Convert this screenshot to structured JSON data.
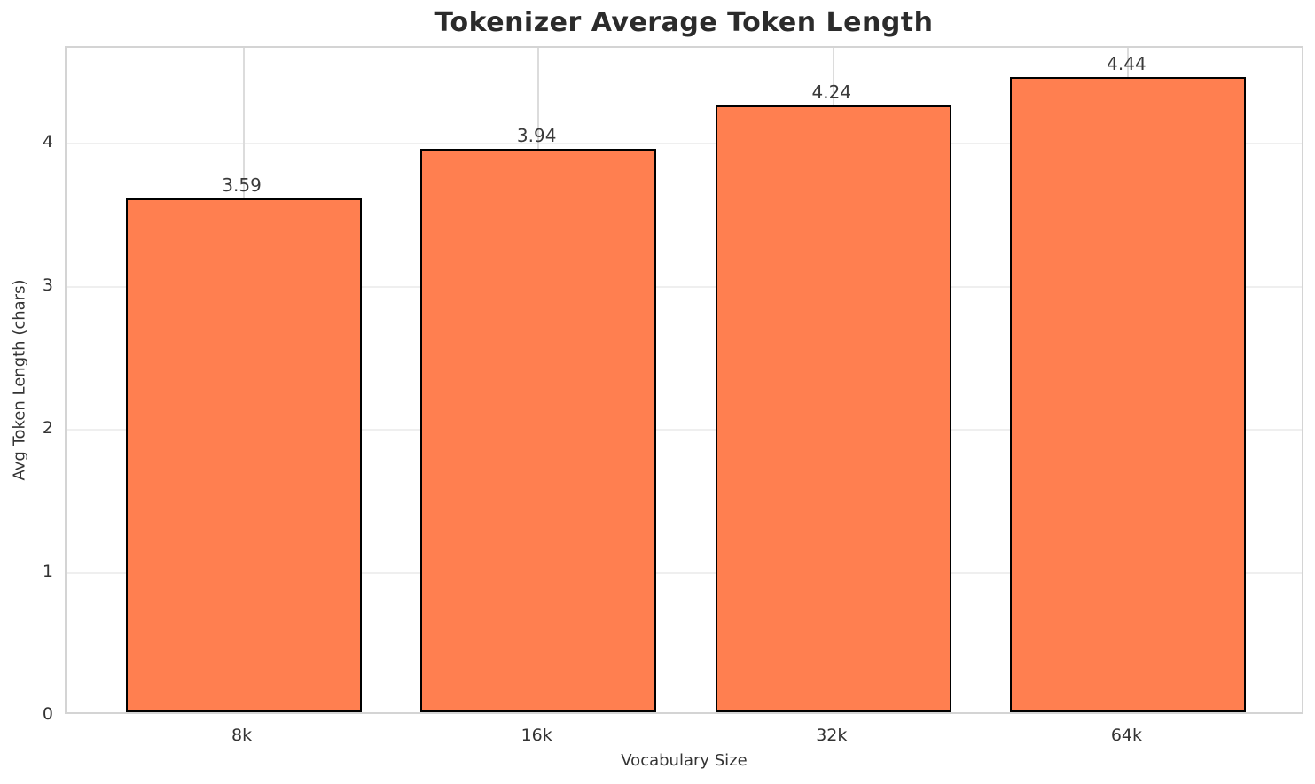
{
  "chart_data": {
    "type": "bar",
    "title": "Tokenizer Average Token Length",
    "xlabel": "Vocabulary Size",
    "ylabel": "Avg Token Length (chars)",
    "categories": [
      "8k",
      "16k",
      "32k",
      "64k"
    ],
    "values": [
      3.59,
      3.94,
      4.24,
      4.44
    ],
    "value_labels": [
      "3.59",
      "3.94",
      "4.24",
      "4.44"
    ],
    "yticks": [
      0,
      1,
      2,
      3,
      4
    ],
    "ylim": [
      0,
      4.67
    ],
    "xlim": [
      -0.6,
      3.6
    ],
    "bar_width": 0.8,
    "grid": true,
    "legend": "none",
    "colors": {
      "bar_fill": "#FF7F50",
      "bar_edge": "#000000",
      "grid_h": "#efefef",
      "grid_v": "#dcdcdc",
      "spine": "#d4d4d4",
      "title_text": "#2b2b2b",
      "tick_text": "#333333",
      "background": "#ffffff"
    }
  }
}
